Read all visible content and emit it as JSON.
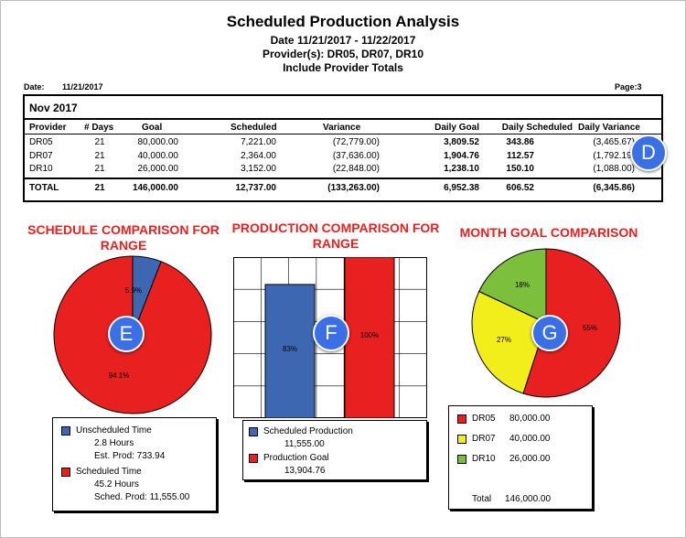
{
  "report": {
    "title": "Scheduled Production Analysis",
    "date_range": "Date 11/21/2017 - 11/22/2017",
    "providers": "Provider(s): DR05, DR07, DR10",
    "subtitle": "Include Provider Totals",
    "date_label": "Date:",
    "date_value": "11/21/2017",
    "page": "Page:3"
  },
  "table": {
    "month": "Nov 2017",
    "headers": [
      "Provider",
      "# Days",
      "Goal",
      "Scheduled",
      "Variance",
      "Daily Goal",
      "Daily Scheduled",
      "Daily Variance"
    ],
    "rows": [
      [
        "DR05",
        "21",
        "80,000.00",
        "7,221.00",
        "(72,779.00)",
        "3,809.52",
        "343.86",
        "(3,465.67)"
      ],
      [
        "DR07",
        "21",
        "40,000.00",
        "2,364.00",
        "(37,636.00)",
        "1,904.76",
        "112.57",
        "(1,792.19)"
      ],
      [
        "DR10",
        "21",
        "26,000.00",
        "3,152.00",
        "(22,848.00)",
        "1,238.10",
        "150.10",
        "(1,088.00)"
      ]
    ],
    "total": [
      "TOTAL",
      "21",
      "146,000.00",
      "12,737.00",
      "(133,263.00)",
      "6,952.38",
      "606.52",
      "(6,345.86)"
    ]
  },
  "callouts": {
    "d": "D",
    "e": "E",
    "f": "F",
    "g": "G"
  },
  "colors": {
    "red": "#e82020",
    "blue": "#3e67b1",
    "yellow": "#f2ee1c",
    "green": "#7cbf3d",
    "badge": "#3a6fe5"
  },
  "chart_data": [
    {
      "type": "pie",
      "title": "SCHEDULE COMPARISON FOR RANGE",
      "slices": [
        {
          "label": "Unscheduled Time",
          "value": 5.9,
          "color": "#3e67b1"
        },
        {
          "label": "Scheduled Time",
          "value": 94.1,
          "color": "#e82020"
        }
      ],
      "slice_labels": [
        "5.9%",
        "94.1%"
      ],
      "legend": {
        "unscheduled_label": "Unscheduled Time",
        "unscheduled_hours": "2.8  Hours",
        "unscheduled_prod": "Est. Prod:  733.94",
        "scheduled_label": "Scheduled Time",
        "scheduled_hours": "45.2  Hours",
        "scheduled_prod": "Sched. Prod:  11,555.00"
      }
    },
    {
      "type": "bar",
      "title": "PRODUCTION COMPARISON FOR RANGE",
      "categories": [
        "Scheduled Production",
        "Production Goal"
      ],
      "values": [
        83,
        100
      ],
      "bar_labels": [
        "83%",
        "100%"
      ],
      "ylim": [
        0,
        100
      ],
      "grid": true,
      "legend": {
        "scheduled_label": "Scheduled Production",
        "scheduled_value": "11,555.00",
        "goal_label": "Production Goal",
        "goal_value": "13,904.76"
      }
    },
    {
      "type": "pie",
      "title": "MONTH GOAL COMPARISON",
      "slices": [
        {
          "label": "DR05",
          "value": 55,
          "color": "#e82020"
        },
        {
          "label": "DR07",
          "value": 27,
          "color": "#f2ee1c"
        },
        {
          "label": "DR10",
          "value": 18,
          "color": "#7cbf3d"
        }
      ],
      "slice_labels": [
        "55%",
        "27%",
        "18%"
      ],
      "legend": {
        "items": [
          {
            "label": "DR05",
            "value": "80,000.00"
          },
          {
            "label": "DR07",
            "value": "40,000.00"
          },
          {
            "label": "DR10",
            "value": "26,000.00"
          }
        ],
        "total_label": "Total",
        "total_value": "146,000.00"
      }
    }
  ]
}
